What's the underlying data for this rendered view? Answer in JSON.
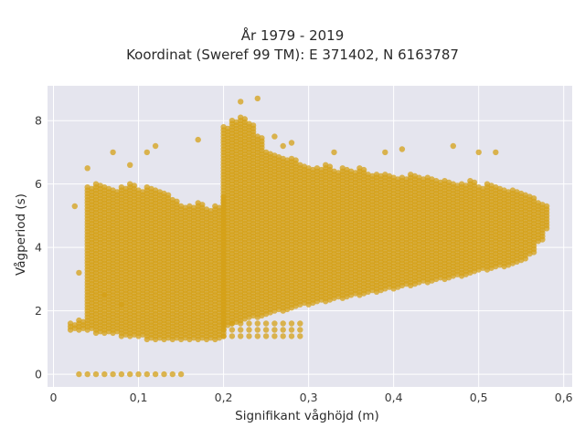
{
  "chart_data": {
    "type": "scatter",
    "title": [
      "År 1979 - 2019",
      "Koordinat (Sweref 99 TM): E 371402, N 6163787"
    ],
    "xlabel": "Signifikant våghöjd (m)",
    "ylabel": "Vågperiod (s)",
    "xlim": [
      -0.007,
      0.61
    ],
    "ylim": [
      -0.4,
      9.1
    ],
    "x_ticks": [
      0,
      0.1,
      0.2,
      0.3,
      0.4,
      0.5,
      0.6
    ],
    "x_tick_labels": [
      "0",
      "0,1",
      "0,2",
      "0,3",
      "0,4",
      "0,5",
      "0,6"
    ],
    "y_ticks": [
      0,
      2,
      4,
      6,
      8
    ],
    "y_tick_labels": [
      "0",
      "2",
      "4",
      "6",
      "8"
    ],
    "grid": true,
    "legend": "none",
    "marker_color": "#d4a017",
    "plot_bg_color": "#e5e5ee",
    "columns_hs_ranges": [
      {
        "x_from": 0.02,
        "x_to": 0.2,
        "y_low": [
          1.4,
          1.4,
          1.4,
          1.3,
          1.3,
          1.3,
          1.2,
          1.2,
          1.2,
          1.1,
          1.1,
          1.1,
          1.1,
          1.1,
          1.1,
          1.1,
          1.1,
          1.1,
          1.2
        ],
        "y_high": [
          1.6,
          1.7,
          5.9,
          6.0,
          5.9,
          5.8,
          5.9,
          6.0,
          5.8,
          5.9,
          5.8,
          5.7,
          5.5,
          5.3,
          5.3,
          5.4,
          5.2,
          5.3,
          5.6
        ]
      },
      {
        "x_from": 0.2,
        "x_to": 0.58,
        "y_low": [
          1.5,
          1.6,
          1.7,
          1.8,
          1.8,
          1.9,
          2.0,
          2.0,
          2.1,
          2.2,
          2.2,
          2.3,
          2.3,
          2.4,
          2.4,
          2.5,
          2.5,
          2.6,
          2.6,
          2.7,
          2.7,
          2.8,
          2.8,
          2.9,
          2.9,
          3.0,
          3.0,
          3.1,
          3.1,
          3.2,
          3.3,
          3.3,
          3.4,
          3.4,
          3.5,
          3.6,
          3.8,
          4.2,
          4.6
        ],
        "y_high": [
          7.8,
          8.0,
          8.1,
          7.9,
          7.5,
          7.0,
          6.9,
          6.8,
          6.8,
          6.6,
          6.5,
          6.5,
          6.6,
          6.4,
          6.5,
          6.4,
          6.5,
          6.3,
          6.3,
          6.3,
          6.2,
          6.2,
          6.3,
          6.2,
          6.2,
          6.1,
          6.1,
          6.0,
          6.0,
          6.1,
          5.9,
          6.0,
          5.9,
          5.8,
          5.8,
          5.7,
          5.6,
          5.4,
          5.3
        ]
      }
    ],
    "outliers": [
      {
        "x": 0.025,
        "y": 5.3
      },
      {
        "x": 0.04,
        "y": 6.5
      },
      {
        "x": 0.07,
        "y": 7.0
      },
      {
        "x": 0.09,
        "y": 6.6
      },
      {
        "x": 0.11,
        "y": 7.0
      },
      {
        "x": 0.12,
        "y": 7.2
      },
      {
        "x": 0.17,
        "y": 7.4
      },
      {
        "x": 0.22,
        "y": 8.6
      },
      {
        "x": 0.24,
        "y": 8.7
      },
      {
        "x": 0.26,
        "y": 7.5
      },
      {
        "x": 0.27,
        "y": 7.2
      },
      {
        "x": 0.28,
        "y": 7.3
      },
      {
        "x": 0.33,
        "y": 7.0
      },
      {
        "x": 0.39,
        "y": 7.0
      },
      {
        "x": 0.41,
        "y": 7.1
      },
      {
        "x": 0.47,
        "y": 7.2
      },
      {
        "x": 0.5,
        "y": 7.0
      },
      {
        "x": 0.52,
        "y": 7.0
      },
      {
        "x": 0.03,
        "y": 3.2
      },
      {
        "x": 0.06,
        "y": 2.5
      },
      {
        "x": 0.08,
        "y": 2.2
      }
    ],
    "zero_period_points": {
      "x_from": 0.03,
      "x_to": 0.15,
      "step": 0.01,
      "y": 0
    },
    "low_band_points": {
      "x_from": 0.2,
      "x_to": 0.29,
      "step": 0.01,
      "y_values": [
        1.2,
        1.4,
        1.6
      ]
    }
  }
}
